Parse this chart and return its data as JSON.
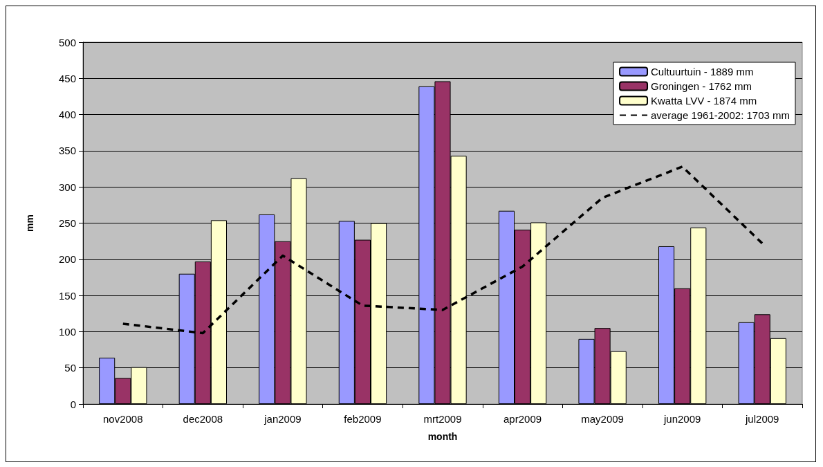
{
  "chart_data": {
    "type": "bar",
    "xlabel": "month",
    "ylabel": "mm",
    "categories": [
      "nov2008",
      "dec2008",
      "jan2009",
      "feb2009",
      "mrt2009",
      "apr2009",
      "may2009",
      "jun2009",
      "jul2009"
    ],
    "series": [
      {
        "name": "Cultuurtuin - 1889 mm",
        "color": "#9999ff",
        "values": [
          64,
          180,
          262,
          253,
          439,
          267,
          90,
          218,
          113
        ]
      },
      {
        "name": "Groningen - 1762 mm",
        "color": "#993366",
        "values": [
          36,
          197,
          225,
          227,
          446,
          241,
          105,
          160,
          124
        ]
      },
      {
        "name": "Kwatta LVV - 1874 mm",
        "color": "#ffffcc",
        "values": [
          51,
          254,
          312,
          250,
          343,
          251,
          73,
          244,
          91
        ]
      },
      {
        "name": "average 1961-2002: 1703 mm",
        "type": "line",
        "color": "#000000",
        "line_style": "dashed",
        "marker": "none",
        "values": [
          111,
          98,
          205,
          136,
          130,
          190,
          285,
          328,
          222
        ]
      }
    ],
    "ylim": [
      0,
      500
    ],
    "yticks": [
      0,
      50,
      100,
      150,
      200,
      250,
      300,
      350,
      400,
      450,
      500
    ],
    "grid": "y",
    "legend": "top right"
  }
}
